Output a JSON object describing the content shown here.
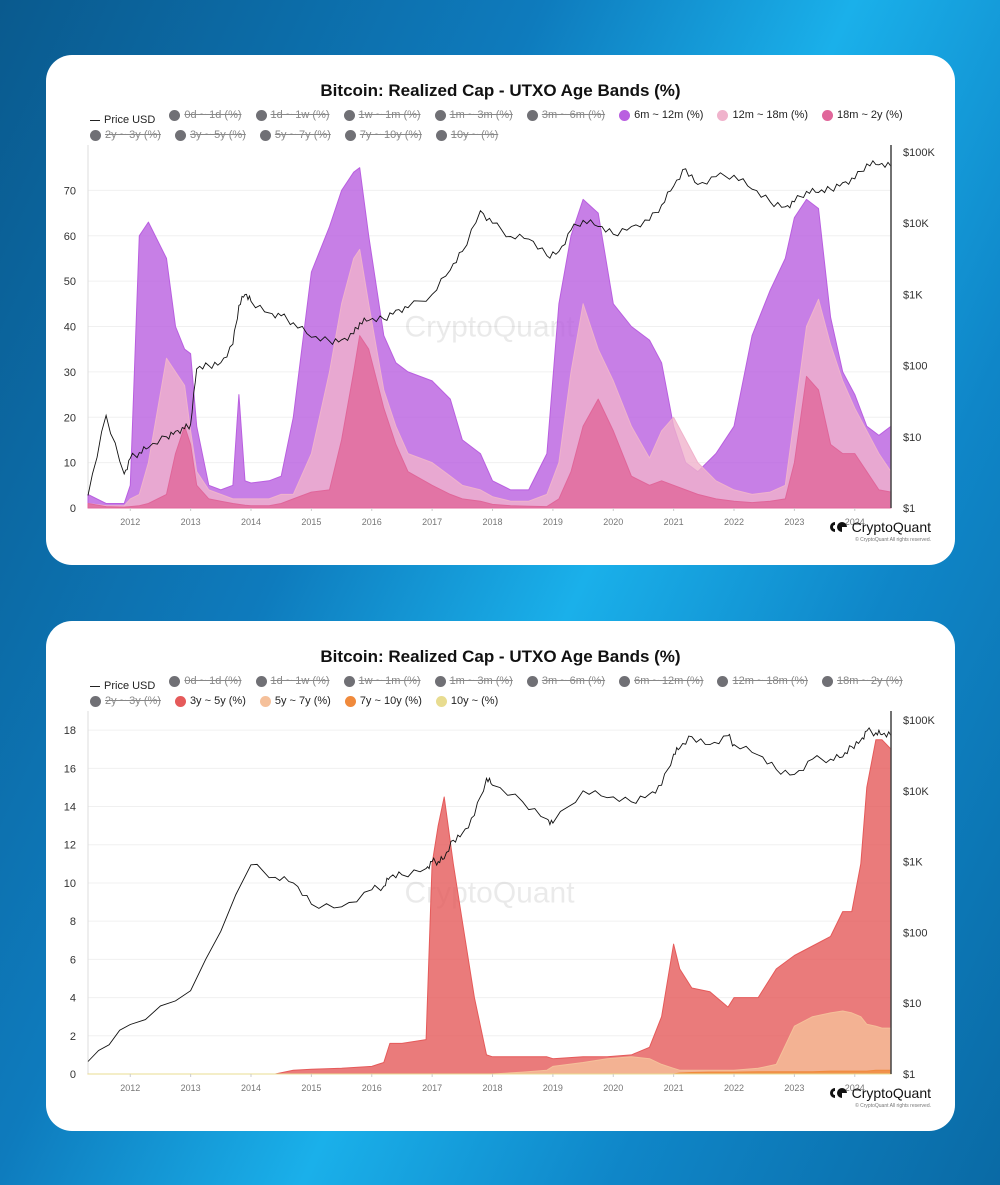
{
  "background": {
    "gradient_colors": [
      "#0a5a8e",
      "#1ab0ea",
      "#0a6aa5"
    ]
  },
  "chart_data": [
    {
      "type": "area",
      "title": "Bitcoin: Realized Cap - UTXO Age Bands (%)",
      "xlabel": "",
      "ylabel": "",
      "x_ticks": [
        "2012",
        "2013",
        "2014",
        "2015",
        "2016",
        "2017",
        "2018",
        "2019",
        "2020",
        "2021",
        "2022",
        "2023",
        "2024"
      ],
      "xlim": [
        2011.3,
        2024.6
      ],
      "ylim": [
        0,
        80
      ],
      "y_ticks": [
        0,
        10,
        20,
        30,
        40,
        50,
        60,
        70
      ],
      "y2_ticks": [
        "$1",
        "$10",
        "$100",
        "$1K",
        "$10K",
        "$100K"
      ],
      "y2_scale": "log",
      "grid": true,
      "legend_position": "top",
      "watermark": "CryptoQuant",
      "legend": [
        {
          "label": "Price USD",
          "type": "line",
          "active": true,
          "color": "#111111"
        },
        {
          "label": "0d ~ 1d (%)",
          "active": false,
          "color": "#707075"
        },
        {
          "label": "1d ~ 1w (%)",
          "active": false,
          "color": "#707075"
        },
        {
          "label": "1w ~ 1m (%)",
          "active": false,
          "color": "#707075"
        },
        {
          "label": "1m ~ 3m (%)",
          "active": false,
          "color": "#707075"
        },
        {
          "label": "3m ~ 6m (%)",
          "active": false,
          "color": "#707075"
        },
        {
          "label": "6m ~ 12m (%)",
          "active": true,
          "color": "#b95fe0"
        },
        {
          "label": "12m ~ 18m (%)",
          "active": true,
          "color": "#f0b3cc"
        },
        {
          "label": "18m ~ 2y (%)",
          "active": true,
          "color": "#e0669a"
        },
        {
          "label": "2y ~ 3y (%)",
          "active": false,
          "color": "#707075"
        },
        {
          "label": "3y ~ 5y (%)",
          "active": false,
          "color": "#707075"
        },
        {
          "label": "5y ~ 7y (%)",
          "active": false,
          "color": "#707075"
        },
        {
          "label": "7y ~ 10y (%)",
          "active": false,
          "color": "#707075"
        },
        {
          "label": "10y ~ (%)",
          "active": false,
          "color": "#707075"
        }
      ],
      "x": [
        2011.3,
        2011.6,
        2011.9,
        2012.0,
        2012.15,
        2012.3,
        2012.6,
        2012.75,
        2012.9,
        2013.0,
        2013.1,
        2013.3,
        2013.5,
        2013.7,
        2013.8,
        2013.9,
        2014.0,
        2014.3,
        2014.5,
        2014.7,
        2015.0,
        2015.3,
        2015.5,
        2015.7,
        2015.8,
        2015.95,
        2016.2,
        2016.4,
        2016.6,
        2017.0,
        2017.3,
        2017.5,
        2017.8,
        2018.0,
        2018.3,
        2018.6,
        2018.9,
        2019.1,
        2019.3,
        2019.5,
        2019.75,
        2020.0,
        2020.3,
        2020.6,
        2020.8,
        2021.0,
        2021.2,
        2021.4,
        2021.7,
        2022.0,
        2022.3,
        2022.6,
        2022.85,
        2023.0,
        2023.2,
        2023.4,
        2023.6,
        2023.8,
        2024.0,
        2024.2,
        2024.4,
        2024.6
      ],
      "series": [
        {
          "name": "18m ~ 2y (%)",
          "color": "#e0669a",
          "stack_top": true,
          "values": [
            1,
            0.3,
            0.2,
            0.3,
            0.5,
            1,
            3,
            12,
            18,
            14,
            5,
            2,
            1.5,
            1,
            0.8,
            0.6,
            0.5,
            0.5,
            1,
            2,
            3.5,
            4,
            15,
            30,
            38,
            35,
            22,
            14,
            8,
            5,
            3,
            2,
            1.5,
            0.8,
            0.5,
            0.4,
            0.3,
            2,
            8,
            18,
            24,
            17,
            7,
            5,
            6,
            5,
            4,
            3,
            2,
            1.5,
            1.2,
            1.5,
            2,
            10,
            29,
            26,
            14,
            12,
            12,
            8,
            4,
            3.5
          ]
        },
        {
          "name": "12m ~ 18m (%)",
          "color": "#f0b3cc",
          "values": [
            1,
            0.5,
            0.5,
            2,
            3,
            10,
            33,
            30,
            27,
            17,
            8,
            4,
            3,
            2,
            2,
            2,
            2,
            2,
            3,
            3,
            12,
            30,
            45,
            55,
            57,
            45,
            26,
            18,
            12,
            10,
            7,
            5,
            4,
            2.5,
            1.5,
            1.5,
            3,
            10,
            30,
            45,
            35,
            28,
            18,
            11,
            17,
            20,
            15,
            10,
            6,
            4,
            3,
            3.5,
            5,
            20,
            40,
            46,
            36,
            28,
            22,
            17,
            12,
            8
          ]
        },
        {
          "name": "6m ~ 12m (%)",
          "color": "#b95fe0",
          "values": [
            3,
            1,
            1,
            5,
            60,
            63,
            55,
            40,
            35,
            34,
            18,
            5,
            4,
            5,
            25,
            6,
            5.5,
            6,
            7,
            20,
            52,
            62,
            70,
            74,
            75,
            60,
            38,
            32,
            30,
            28,
            24,
            15,
            12,
            6,
            4,
            4,
            12,
            45,
            60,
            68,
            65,
            45,
            40,
            37,
            32,
            18,
            10,
            8,
            12,
            18,
            38,
            48,
            55,
            64,
            68,
            66,
            42,
            30,
            25,
            18,
            16,
            18
          ]
        },
        {
          "name": "Price USD",
          "type": "line",
          "axis": "y2",
          "color": "#111111",
          "values": [
            1.5,
            20,
            3,
            5,
            6,
            7,
            10,
            12,
            13,
            15,
            90,
            100,
            110,
            200,
            700,
            1000,
            800,
            550,
            500,
            400,
            250,
            220,
            230,
            280,
            400,
            430,
            450,
            600,
            650,
            1000,
            2200,
            4000,
            15000,
            10000,
            6500,
            6000,
            3500,
            4000,
            8000,
            11000,
            9000,
            7000,
            9000,
            11000,
            18000,
            33000,
            58000,
            35000,
            45000,
            47000,
            30000,
            20000,
            17000,
            20000,
            28000,
            27000,
            30000,
            37000,
            42000,
            68000,
            66000,
            63000
          ]
        }
      ]
    },
    {
      "type": "area",
      "title": "Bitcoin: Realized Cap - UTXO Age Bands (%)",
      "xlabel": "",
      "ylabel": "",
      "x_ticks": [
        "2012",
        "2013",
        "2014",
        "2015",
        "2016",
        "2017",
        "2018",
        "2019",
        "2020",
        "2021",
        "2022",
        "2023",
        "2024"
      ],
      "xlim": [
        2011.3,
        2024.6
      ],
      "ylim": [
        0,
        19
      ],
      "y_ticks": [
        0,
        2,
        4,
        6,
        8,
        10,
        12,
        14,
        16,
        18
      ],
      "y2_ticks": [
        "$1",
        "$10",
        "$100",
        "$1K",
        "$10K",
        "$100K"
      ],
      "y2_scale": "log",
      "grid": true,
      "legend_position": "top",
      "watermark": "CryptoQuant",
      "legend": [
        {
          "label": "Price USD",
          "type": "line",
          "active": true,
          "color": "#111111"
        },
        {
          "label": "0d ~ 1d (%)",
          "active": false,
          "color": "#707075"
        },
        {
          "label": "1d ~ 1w (%)",
          "active": false,
          "color": "#707075"
        },
        {
          "label": "1w ~ 1m (%)",
          "active": false,
          "color": "#707075"
        },
        {
          "label": "1m ~ 3m (%)",
          "active": false,
          "color": "#707075"
        },
        {
          "label": "3m ~ 6m (%)",
          "active": false,
          "color": "#707075"
        },
        {
          "label": "6m ~ 12m (%)",
          "active": false,
          "color": "#707075"
        },
        {
          "label": "12m ~ 18m (%)",
          "active": false,
          "color": "#707075"
        },
        {
          "label": "18m ~ 2y (%)",
          "active": false,
          "color": "#707075"
        },
        {
          "label": "2y ~ 3y (%)",
          "active": false,
          "color": "#707075"
        },
        {
          "label": "3y ~ 5y (%)",
          "active": true,
          "color": "#e55a5a"
        },
        {
          "label": "5y ~ 7y (%)",
          "active": true,
          "color": "#f5c09a"
        },
        {
          "label": "7y ~ 10y (%)",
          "active": true,
          "color": "#f08a3c"
        },
        {
          "label": "10y ~ (%)",
          "active": true,
          "color": "#e8dc90"
        }
      ],
      "x": [
        2011.3,
        2012.0,
        2013.0,
        2014.0,
        2014.4,
        2014.7,
        2015.0,
        2015.5,
        2016.0,
        2016.2,
        2016.3,
        2016.5,
        2016.9,
        2017.0,
        2017.1,
        2017.2,
        2017.35,
        2017.5,
        2017.7,
        2017.9,
        2018.0,
        2018.5,
        2018.9,
        2019.0,
        2019.5,
        2019.9,
        2020.3,
        2020.6,
        2020.8,
        2021.0,
        2021.1,
        2021.3,
        2021.6,
        2021.9,
        2022.0,
        2022.4,
        2022.7,
        2023.0,
        2023.3,
        2023.6,
        2023.8,
        2023.95,
        2024.1,
        2024.2,
        2024.35,
        2024.45,
        2024.6
      ],
      "series": [
        {
          "name": "10y ~ (%)",
          "color": "#e8dc90",
          "values": [
            0,
            0,
            0,
            0,
            0,
            0,
            0,
            0,
            0,
            0,
            0,
            0,
            0,
            0,
            0,
            0,
            0,
            0,
            0,
            0,
            0,
            0,
            0,
            0,
            0,
            0,
            0,
            0,
            0,
            0,
            0,
            0,
            0,
            0,
            0,
            0,
            0,
            0,
            0,
            0,
            0,
            0,
            0,
            0,
            0,
            0,
            0
          ]
        },
        {
          "name": "7y ~ 10y (%)",
          "color": "#f08a3c",
          "values": [
            0,
            0,
            0,
            0,
            0,
            0,
            0,
            0,
            0,
            0,
            0,
            0,
            0,
            0,
            0,
            0,
            0,
            0,
            0,
            0,
            0,
            0,
            0,
            0,
            0,
            0,
            0,
            0,
            0,
            0,
            0.05,
            0.08,
            0.1,
            0.1,
            0.1,
            0.12,
            0.12,
            0.12,
            0.12,
            0.15,
            0.15,
            0.15,
            0.15,
            0.15,
            0.2,
            0.2,
            0.2
          ]
        },
        {
          "name": "5y ~ 7y (%)",
          "color": "#f5c09a",
          "values": [
            0,
            0,
            0,
            0,
            0,
            0,
            0,
            0,
            0,
            0,
            0,
            0,
            0,
            0,
            0,
            0,
            0,
            0,
            0,
            0,
            0,
            0.1,
            0.2,
            0.4,
            0.6,
            0.8,
            0.9,
            0.8,
            0.5,
            0.3,
            0.2,
            0.2,
            0.2,
            0.2,
            0.2,
            0.3,
            0.5,
            2.5,
            3.0,
            3.2,
            3.3,
            3.2,
            3.0,
            2.6,
            2.5,
            2.4,
            2.4
          ]
        },
        {
          "name": "3y ~ 5y (%)",
          "color": "#e55a5a",
          "values": [
            0,
            0,
            0,
            0,
            0,
            0.2,
            0.25,
            0.3,
            0.4,
            0.6,
            1.6,
            1.6,
            1.8,
            11,
            13,
            14.5,
            11,
            8,
            4,
            1.0,
            0.9,
            0.9,
            0.9,
            0.8,
            0.9,
            0.9,
            1.0,
            1.4,
            3,
            6.8,
            5.5,
            4.5,
            4.3,
            3.5,
            4.0,
            4.0,
            5.5,
            6.2,
            6.7,
            7.2,
            8.5,
            8.5,
            11,
            15,
            17.5,
            17.5,
            17
          ]
        },
        {
          "name": "Price USD",
          "type": "line",
          "axis": "y2",
          "color": "#111111",
          "values": [
            1.5,
            5,
            15,
            900,
            600,
            500,
            250,
            230,
            400,
            450,
            600,
            650,
            800,
            1000,
            1000,
            1100,
            2000,
            2500,
            4500,
            15000,
            12000,
            7000,
            4000,
            3500,
            10000,
            8000,
            7000,
            9000,
            12000,
            33000,
            40000,
            58000,
            45000,
            60000,
            45000,
            32000,
            20000,
            17000,
            28000,
            28000,
            30000,
            42000,
            52000,
            70000,
            66000,
            62000,
            60000
          ]
        }
      ]
    }
  ],
  "charts": [
    {
      "title": "Bitcoin: Realized Cap - UTXO Age Bands (%)",
      "logo_text": "CryptoQuant",
      "copyright": "© CryptoQuant All rights reserved."
    },
    {
      "title": "Bitcoin: Realized Cap - UTXO Age Bands (%)",
      "logo_text": "CryptoQuant",
      "copyright": "© CryptoQuant All rights reserved."
    }
  ]
}
